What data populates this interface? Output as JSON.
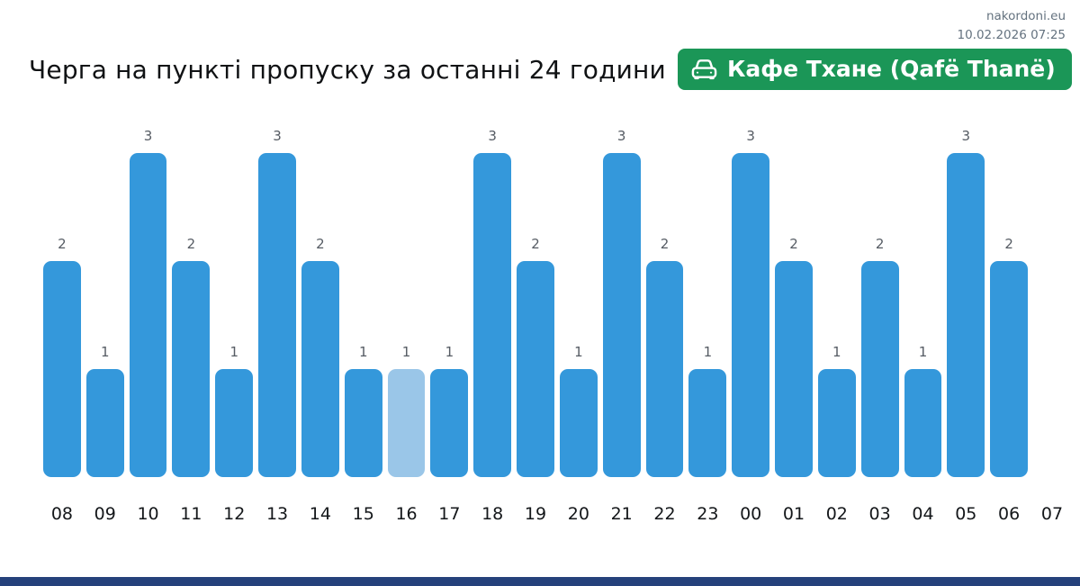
{
  "header": {
    "site": "nakordoni.eu",
    "datetime": "10.02.2026 07:25"
  },
  "title": "Черга на пункті пропуску за останні 24 години",
  "badge": {
    "label": "Кафе Тхане (Qafë Thanë)",
    "icon": "car-front-icon",
    "background": "#1b9657",
    "text_color": "#ffffff"
  },
  "chart_data": {
    "type": "bar",
    "title": "Черга на пункті пропуску за останні 24 години",
    "categories": [
      "08",
      "09",
      "10",
      "11",
      "12",
      "13",
      "14",
      "15",
      "16",
      "17",
      "18",
      "19",
      "20",
      "21",
      "22",
      "23",
      "00",
      "01",
      "02",
      "03",
      "04",
      "05",
      "06",
      "07"
    ],
    "values": [
      2,
      1,
      3,
      2,
      1,
      3,
      2,
      1,
      1,
      1,
      3,
      2,
      1,
      3,
      2,
      1,
      3,
      2,
      1,
      2,
      1,
      3,
      2,
      0
    ],
    "highlighted_category": "16",
    "bar_color": "#3498db",
    "highlight_color": "#9ac6e8",
    "value_label_color": "#565c64",
    "xlabel": "",
    "ylabel": "",
    "ylim": [
      0,
      3
    ],
    "grid": false,
    "legend": false,
    "data_labels": true
  },
  "footer": {
    "color": "#25417b"
  }
}
